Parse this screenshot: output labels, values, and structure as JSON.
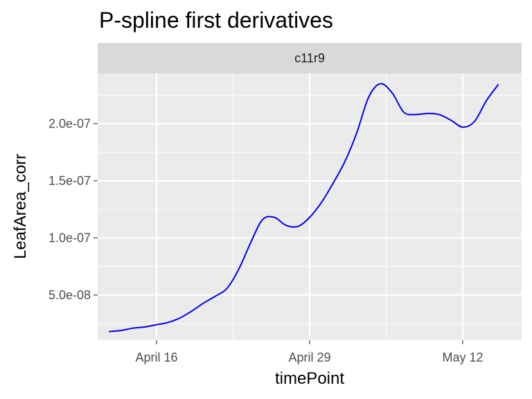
{
  "chart_data": {
    "type": "line",
    "title": "P-spline first derivatives",
    "facet": "c11r9",
    "xlabel": "timePoint",
    "ylabel": "LeafArea_corr",
    "x_ticks": [
      "April 16",
      "April 29",
      "May 12"
    ],
    "y_ticks": [
      "5.0e-08",
      "1.0e-07",
      "1.5e-07",
      "2.0e-07"
    ],
    "y_tick_values": [
      5e-08,
      1e-07,
      1.5e-07,
      2e-07
    ],
    "xlim": [
      "2018-04-11",
      "2018-05-17"
    ],
    "ylim": [
      1.05e-08,
      2.44e-07
    ],
    "grid": true,
    "colors": {
      "line": "#0000ee",
      "panel": "#ebebeb",
      "strip": "#d9d9d9",
      "grid": "#ffffff"
    },
    "series": [
      {
        "x": [
          "2018-04-12",
          "2018-04-13",
          "2018-04-14",
          "2018-04-15",
          "2018-04-16",
          "2018-04-17",
          "2018-04-18",
          "2018-04-19",
          "2018-04-20",
          "2018-04-21",
          "2018-04-22",
          "2018-04-23",
          "2018-04-24",
          "2018-04-25",
          "2018-04-26",
          "2018-04-27",
          "2018-04-28",
          "2018-04-29",
          "2018-04-30",
          "2018-05-01",
          "2018-05-02",
          "2018-05-03",
          "2018-05-04",
          "2018-05-05",
          "2018-05-06",
          "2018-05-07",
          "2018-05-08",
          "2018-05-09",
          "2018-05-10",
          "2018-05-11",
          "2018-05-12",
          "2018-05-13",
          "2018-05-14",
          "2018-05-15"
        ],
        "values": [
          1.8e-08,
          1.9e-08,
          2.1e-08,
          2.2e-08,
          2.4e-08,
          2.6e-08,
          3e-08,
          3.6e-08,
          4.3e-08,
          4.9e-08,
          5.6e-08,
          7.3e-08,
          9.6e-08,
          1.16e-07,
          1.18e-07,
          1.11e-07,
          1.1e-07,
          1.18e-07,
          1.31e-07,
          1.48e-07,
          1.67e-07,
          1.92e-07,
          2.23e-07,
          2.35e-07,
          2.27e-07,
          2.1e-07,
          2.08e-07,
          2.09e-07,
          2.08e-07,
          2.03e-07,
          1.97e-07,
          2.02e-07,
          2.2e-07,
          2.34e-07
        ]
      }
    ]
  }
}
